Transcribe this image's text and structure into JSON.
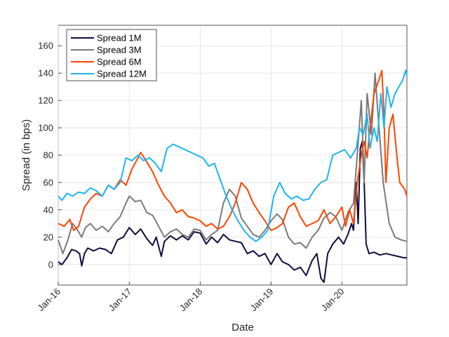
{
  "chart_data": {
    "type": "line",
    "title": "",
    "xlabel": "Date",
    "ylabel": "Spread (in bps)",
    "xlim": [
      "2016-01-01",
      "2020-12-01"
    ],
    "ylim": [
      -15,
      175
    ],
    "yticks": [
      0,
      20,
      40,
      60,
      80,
      100,
      120,
      140,
      160
    ],
    "xticks": [
      {
        "date": "2016-01-01",
        "label": "Jan-16"
      },
      {
        "date": "2017-01-01",
        "label": "Jan-17"
      },
      {
        "date": "2018-01-01",
        "label": "Jan-18"
      },
      {
        "date": "2019-01-01",
        "label": "Jan-19"
      },
      {
        "date": "2020-01-01",
        "label": "Jan-20"
      }
    ],
    "grid": true,
    "legend_position": "top-left",
    "series": [
      {
        "name": "Spread 1M",
        "color": "#0d0d3f",
        "points": [
          [
            "2016-01-01",
            2
          ],
          [
            "2016-01-20",
            0
          ],
          [
            "2016-02-15",
            5
          ],
          [
            "2016-03-10",
            11
          ],
          [
            "2016-04-01",
            10
          ],
          [
            "2016-04-20",
            8
          ],
          [
            "2016-05-01",
            -1
          ],
          [
            "2016-05-15",
            8
          ],
          [
            "2016-06-01",
            12
          ],
          [
            "2016-07-01",
            10
          ],
          [
            "2016-08-01",
            12
          ],
          [
            "2016-09-01",
            11
          ],
          [
            "2016-10-01",
            8
          ],
          [
            "2016-11-01",
            18
          ],
          [
            "2016-12-01",
            20
          ],
          [
            "2017-01-01",
            27
          ],
          [
            "2017-02-01",
            22
          ],
          [
            "2017-03-01",
            26
          ],
          [
            "2017-04-01",
            19
          ],
          [
            "2017-05-01",
            14
          ],
          [
            "2017-05-20",
            20
          ],
          [
            "2017-06-15",
            6
          ],
          [
            "2017-07-01",
            17
          ],
          [
            "2017-08-01",
            21
          ],
          [
            "2017-09-01",
            18
          ],
          [
            "2017-10-01",
            21
          ],
          [
            "2017-11-01",
            18
          ],
          [
            "2017-12-01",
            24
          ],
          [
            "2018-01-01",
            23
          ],
          [
            "2018-02-01",
            15
          ],
          [
            "2018-03-01",
            20
          ],
          [
            "2018-04-01",
            16
          ],
          [
            "2018-05-01",
            22
          ],
          [
            "2018-06-01",
            18
          ],
          [
            "2018-07-01",
            17
          ],
          [
            "2018-08-01",
            16
          ],
          [
            "2018-09-01",
            8
          ],
          [
            "2018-10-01",
            10
          ],
          [
            "2018-11-01",
            6
          ],
          [
            "2018-12-01",
            8
          ],
          [
            "2019-01-01",
            0
          ],
          [
            "2019-02-01",
            8
          ],
          [
            "2019-03-01",
            2
          ],
          [
            "2019-04-01",
            0
          ],
          [
            "2019-05-01",
            -4
          ],
          [
            "2019-06-01",
            -2
          ],
          [
            "2019-07-01",
            -8
          ],
          [
            "2019-08-01",
            3
          ],
          [
            "2019-08-25",
            8
          ],
          [
            "2019-09-15",
            -10
          ],
          [
            "2019-10-01",
            -13
          ],
          [
            "2019-10-20",
            8
          ],
          [
            "2019-11-15",
            15
          ],
          [
            "2019-12-15",
            20
          ],
          [
            "2020-01-10",
            15
          ],
          [
            "2020-02-01",
            22
          ],
          [
            "2020-02-20",
            30
          ],
          [
            "2020-03-01",
            25
          ],
          [
            "2020-03-15",
            60
          ],
          [
            "2020-03-25",
            30
          ],
          [
            "2020-04-05",
            85
          ],
          [
            "2020-04-15",
            90
          ],
          [
            "2020-04-25",
            60
          ],
          [
            "2020-05-05",
            15
          ],
          [
            "2020-05-20",
            8
          ],
          [
            "2020-06-15",
            9
          ],
          [
            "2020-07-15",
            7
          ],
          [
            "2020-08-15",
            8
          ],
          [
            "2020-09-15",
            7
          ],
          [
            "2020-10-15",
            6
          ],
          [
            "2020-11-15",
            5
          ],
          [
            "2020-12-01",
            5
          ]
        ]
      },
      {
        "name": "Spread 3M",
        "color": "#7a7a7a",
        "points": [
          [
            "2016-01-01",
            18
          ],
          [
            "2016-01-25",
            8
          ],
          [
            "2016-02-20",
            18
          ],
          [
            "2016-03-15",
            30
          ],
          [
            "2016-04-10",
            25
          ],
          [
            "2016-05-01",
            20
          ],
          [
            "2016-05-20",
            27
          ],
          [
            "2016-06-15",
            30
          ],
          [
            "2016-07-15",
            25
          ],
          [
            "2016-08-15",
            28
          ],
          [
            "2016-09-15",
            24
          ],
          [
            "2016-10-15",
            30
          ],
          [
            "2016-11-15",
            35
          ],
          [
            "2016-12-15",
            45
          ],
          [
            "2017-01-01",
            50
          ],
          [
            "2017-02-01",
            46
          ],
          [
            "2017-03-01",
            47
          ],
          [
            "2017-04-01",
            38
          ],
          [
            "2017-05-01",
            36
          ],
          [
            "2017-06-01",
            28
          ],
          [
            "2017-07-01",
            20
          ],
          [
            "2017-08-01",
            24
          ],
          [
            "2017-09-01",
            26
          ],
          [
            "2017-10-01",
            22
          ],
          [
            "2017-11-01",
            20
          ],
          [
            "2017-12-01",
            26
          ],
          [
            "2018-01-01",
            25
          ],
          [
            "2018-02-01",
            18
          ],
          [
            "2018-03-01",
            22
          ],
          [
            "2018-04-01",
            25
          ],
          [
            "2018-05-01",
            45
          ],
          [
            "2018-06-01",
            55
          ],
          [
            "2018-07-01",
            50
          ],
          [
            "2018-08-01",
            34
          ],
          [
            "2018-09-01",
            28
          ],
          [
            "2018-10-01",
            22
          ],
          [
            "2018-11-01",
            20
          ],
          [
            "2018-12-01",
            25
          ],
          [
            "2019-01-01",
            32
          ],
          [
            "2019-02-01",
            37
          ],
          [
            "2019-03-01",
            33
          ],
          [
            "2019-04-01",
            20
          ],
          [
            "2019-05-01",
            15
          ],
          [
            "2019-06-01",
            16
          ],
          [
            "2019-07-01",
            12
          ],
          [
            "2019-08-01",
            20
          ],
          [
            "2019-09-01",
            25
          ],
          [
            "2019-10-01",
            34
          ],
          [
            "2019-11-01",
            38
          ],
          [
            "2019-12-01",
            35
          ],
          [
            "2020-01-01",
            25
          ],
          [
            "2020-02-01",
            38
          ],
          [
            "2020-03-01",
            45
          ],
          [
            "2020-03-20",
            80
          ],
          [
            "2020-04-10",
            120
          ],
          [
            "2020-04-25",
            60
          ],
          [
            "2020-05-10",
            125
          ],
          [
            "2020-06-01",
            95
          ],
          [
            "2020-06-20",
            140
          ],
          [
            "2020-07-05",
            110
          ],
          [
            "2020-08-01",
            60
          ],
          [
            "2020-09-01",
            30
          ],
          [
            "2020-10-01",
            20
          ],
          [
            "2020-11-01",
            18
          ],
          [
            "2020-12-01",
            17
          ]
        ]
      },
      {
        "name": "Spread 6M",
        "color": "#ff4500",
        "points": [
          [
            "2016-01-01",
            30
          ],
          [
            "2016-02-01",
            28
          ],
          [
            "2016-03-01",
            33
          ],
          [
            "2016-03-20",
            25
          ],
          [
            "2016-04-15",
            28
          ],
          [
            "2016-05-15",
            42
          ],
          [
            "2016-06-15",
            48
          ],
          [
            "2016-07-15",
            52
          ],
          [
            "2016-08-15",
            50
          ],
          [
            "2016-09-15",
            58
          ],
          [
            "2016-10-15",
            55
          ],
          [
            "2016-11-15",
            62
          ],
          [
            "2016-12-15",
            58
          ],
          [
            "2017-01-15",
            70
          ],
          [
            "2017-02-15",
            78
          ],
          [
            "2017-03-01",
            82
          ],
          [
            "2017-04-01",
            75
          ],
          [
            "2017-05-01",
            68
          ],
          [
            "2017-06-01",
            58
          ],
          [
            "2017-07-01",
            50
          ],
          [
            "2017-08-01",
            45
          ],
          [
            "2017-09-01",
            38
          ],
          [
            "2017-10-01",
            40
          ],
          [
            "2017-11-01",
            35
          ],
          [
            "2017-12-01",
            34
          ],
          [
            "2018-01-01",
            32
          ],
          [
            "2018-02-01",
            28
          ],
          [
            "2018-03-01",
            30
          ],
          [
            "2018-04-01",
            26
          ],
          [
            "2018-05-01",
            28
          ],
          [
            "2018-06-01",
            35
          ],
          [
            "2018-07-01",
            45
          ],
          [
            "2018-08-01",
            60
          ],
          [
            "2018-09-01",
            55
          ],
          [
            "2018-10-01",
            45
          ],
          [
            "2018-11-01",
            38
          ],
          [
            "2018-12-01",
            32
          ],
          [
            "2019-01-01",
            25
          ],
          [
            "2019-02-01",
            27
          ],
          [
            "2019-03-01",
            30
          ],
          [
            "2019-04-01",
            42
          ],
          [
            "2019-05-01",
            45
          ],
          [
            "2019-06-01",
            35
          ],
          [
            "2019-07-01",
            28
          ],
          [
            "2019-08-01",
            30
          ],
          [
            "2019-09-01",
            32
          ],
          [
            "2019-10-01",
            40
          ],
          [
            "2019-11-01",
            30
          ],
          [
            "2019-12-01",
            35
          ],
          [
            "2020-01-01",
            42
          ],
          [
            "2020-01-20",
            28
          ],
          [
            "2020-02-10",
            40
          ],
          [
            "2020-03-01",
            30
          ],
          [
            "2020-03-20",
            60
          ],
          [
            "2020-04-10",
            80
          ],
          [
            "2020-04-25",
            90
          ],
          [
            "2020-05-10",
            78
          ],
          [
            "2020-05-25",
            100
          ],
          [
            "2020-06-15",
            125
          ],
          [
            "2020-07-10",
            135
          ],
          [
            "2020-07-25",
            142
          ],
          [
            "2020-08-05",
            110
          ],
          [
            "2020-08-15",
            60
          ],
          [
            "2020-09-01",
            100
          ],
          [
            "2020-09-20",
            110
          ],
          [
            "2020-10-10",
            80
          ],
          [
            "2020-10-25",
            60
          ],
          [
            "2020-11-20",
            55
          ],
          [
            "2020-12-01",
            50
          ]
        ]
      },
      {
        "name": "Spread 12M",
        "color": "#1eb4f0",
        "points": [
          [
            "2016-01-01",
            50
          ],
          [
            "2016-01-20",
            47
          ],
          [
            "2016-02-15",
            52
          ],
          [
            "2016-03-15",
            50
          ],
          [
            "2016-04-15",
            53
          ],
          [
            "2016-05-15",
            52
          ],
          [
            "2016-06-15",
            56
          ],
          [
            "2016-07-15",
            54
          ],
          [
            "2016-08-15",
            50
          ],
          [
            "2016-09-15",
            58
          ],
          [
            "2016-10-15",
            55
          ],
          [
            "2016-11-15",
            60
          ],
          [
            "2016-12-15",
            78
          ],
          [
            "2017-01-15",
            76
          ],
          [
            "2017-02-15",
            80
          ],
          [
            "2017-03-15",
            76
          ],
          [
            "2017-04-15",
            78
          ],
          [
            "2017-05-15",
            74
          ],
          [
            "2017-06-15",
            68
          ],
          [
            "2017-07-15",
            85
          ],
          [
            "2017-08-15",
            88
          ],
          [
            "2017-09-15",
            86
          ],
          [
            "2017-10-15",
            84
          ],
          [
            "2017-11-15",
            82
          ],
          [
            "2017-12-15",
            80
          ],
          [
            "2018-01-15",
            78
          ],
          [
            "2018-02-15",
            72
          ],
          [
            "2018-03-15",
            74
          ],
          [
            "2018-04-15",
            62
          ],
          [
            "2018-05-15",
            50
          ],
          [
            "2018-06-15",
            40
          ],
          [
            "2018-07-15",
            32
          ],
          [
            "2018-08-15",
            25
          ],
          [
            "2018-09-15",
            20
          ],
          [
            "2018-10-15",
            17
          ],
          [
            "2018-11-15",
            20
          ],
          [
            "2018-12-15",
            25
          ],
          [
            "2019-01-15",
            50
          ],
          [
            "2019-02-15",
            60
          ],
          [
            "2019-03-15",
            52
          ],
          [
            "2019-04-15",
            48
          ],
          [
            "2019-05-15",
            50
          ],
          [
            "2019-06-15",
            47
          ],
          [
            "2019-07-15",
            48
          ],
          [
            "2019-08-15",
            55
          ],
          [
            "2019-09-15",
            60
          ],
          [
            "2019-10-15",
            62
          ],
          [
            "2019-11-15",
            80
          ],
          [
            "2019-12-15",
            82
          ],
          [
            "2020-01-15",
            84
          ],
          [
            "2020-02-15",
            78
          ],
          [
            "2020-03-15",
            85
          ],
          [
            "2020-04-01",
            100
          ],
          [
            "2020-04-20",
            95
          ],
          [
            "2020-05-10",
            110
          ],
          [
            "2020-05-25",
            85
          ],
          [
            "2020-06-15",
            100
          ],
          [
            "2020-07-01",
            90
          ],
          [
            "2020-07-20",
            125
          ],
          [
            "2020-08-05",
            100
          ],
          [
            "2020-08-20",
            130
          ],
          [
            "2020-09-10",
            115
          ],
          [
            "2020-10-01",
            125
          ],
          [
            "2020-10-20",
            130
          ],
          [
            "2020-11-10",
            135
          ],
          [
            "2020-11-25",
            142
          ],
          [
            "2020-12-01",
            138
          ]
        ]
      }
    ]
  }
}
